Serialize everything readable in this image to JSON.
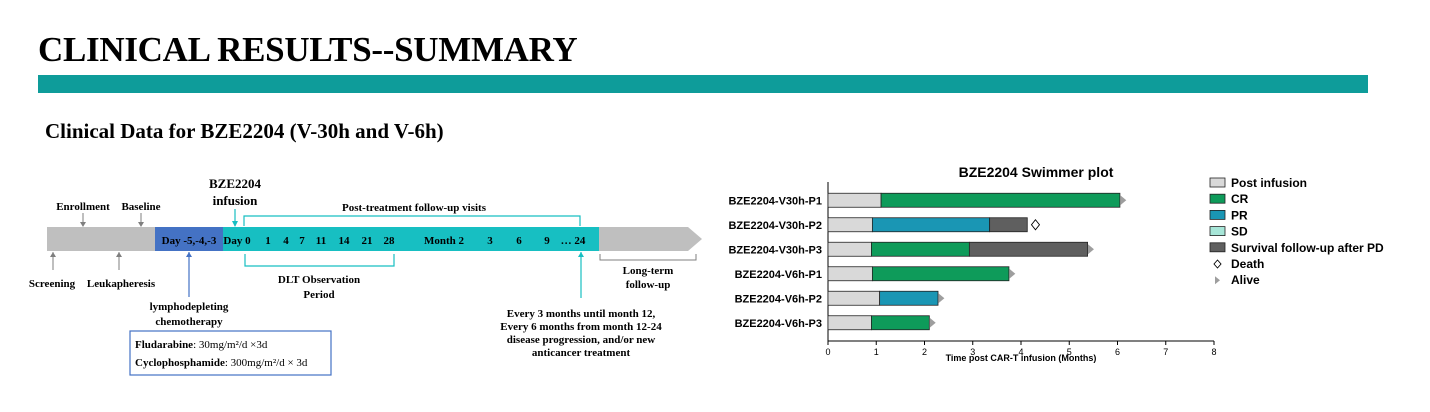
{
  "slide": {
    "title": "CLINICAL RESULTS--SUMMARY",
    "subtitle": "Clinical Data for BZE2204 (V-30h and V-6h)",
    "accent_color": "#0e9c9a"
  },
  "timeline": {
    "screening": "Screening",
    "enrollment": "Enrollment",
    "leukapheresis": "Leukapheresis",
    "baseline": "Baseline",
    "lympho_days": "Day -5,-4,-3",
    "infusion_line1": "BZE2204",
    "infusion_line2": "infusion",
    "day_label": "Day 0",
    "days": [
      "1",
      "4",
      "7",
      "11",
      "14",
      "21",
      "28"
    ],
    "month_label": "Month 2",
    "months": [
      "3",
      "6",
      "9",
      "… 24"
    ],
    "followup_visits": "Post-treatment follow-up visits",
    "dlt_line1": "DLT Observation",
    "dlt_line2": "Period",
    "longterm_line1": "Long-term",
    "longterm_line2": "follow-up",
    "lympho_line1": "lymphodepleting",
    "lympho_line2": "chemotherapy",
    "regimen_1_name": "Fludarabine",
    "regimen_1_dose": ":  30mg/m²/d ×3d",
    "regimen_2_name": "Cyclophosphamide",
    "regimen_2_dose": ":  300mg/m²/d × 3d",
    "note_lines": [
      "Every 3 months until month 12,",
      "Every 6 months from month 12-24",
      "disease progression, and/or new",
      "anticancer treatment"
    ]
  },
  "chart_data": {
    "type": "bar",
    "title": "BZE2204 Swimmer plot",
    "xlabel": "Time post CAR-T infusion (Months)",
    "xlim": [
      0,
      8
    ],
    "xticks": [
      0,
      1,
      2,
      3,
      4,
      5,
      6,
      7,
      8
    ],
    "patients": [
      {
        "id": "BZE2204-V30h-P1",
        "segments": [
          {
            "status": "Post infusion",
            "start": 0,
            "end": 1.1
          },
          {
            "status": "CR",
            "start": 1.1,
            "end": 6.05
          }
        ],
        "end_marker": "Alive",
        "marker_at": 6.12
      },
      {
        "id": "BZE2204-V30h-P2",
        "segments": [
          {
            "status": "Post infusion",
            "start": 0,
            "end": 0.92
          },
          {
            "status": "PR",
            "start": 0.92,
            "end": 3.35
          },
          {
            "status": "Survival follow-up after PD",
            "start": 3.35,
            "end": 4.13
          }
        ],
        "end_marker": "Death",
        "marker_at": 4.3
      },
      {
        "id": "BZE2204-V30h-P3",
        "segments": [
          {
            "status": "Post infusion",
            "start": 0,
            "end": 0.9
          },
          {
            "status": "CR",
            "start": 0.9,
            "end": 2.93
          },
          {
            "status": "Survival follow-up after PD",
            "start": 2.93,
            "end": 5.38
          }
        ],
        "end_marker": "Alive",
        "marker_at": 5.45
      },
      {
        "id": "BZE2204-V6h-P1",
        "segments": [
          {
            "status": "Post infusion",
            "start": 0,
            "end": 0.92
          },
          {
            "status": "CR",
            "start": 0.92,
            "end": 3.75
          }
        ],
        "end_marker": "Alive",
        "marker_at": 3.82
      },
      {
        "id": "BZE2204-V6h-P2",
        "segments": [
          {
            "status": "Post infusion",
            "start": 0,
            "end": 1.07
          },
          {
            "status": "PR",
            "start": 1.07,
            "end": 2.28
          }
        ],
        "end_marker": "Alive",
        "marker_at": 2.35
      },
      {
        "id": "BZE2204-V6h-P3",
        "segments": [
          {
            "status": "Post infusion",
            "start": 0,
            "end": 0.9
          },
          {
            "status": "CR",
            "start": 0.9,
            "end": 2.1
          }
        ],
        "end_marker": "Alive",
        "marker_at": 2.17
      }
    ],
    "legend": [
      {
        "label": "Post infusion",
        "color": "#d9d9d9",
        "kind": "box"
      },
      {
        "label": "CR",
        "color": "#0e9b5a",
        "kind": "box"
      },
      {
        "label": "PR",
        "color": "#1a96b4",
        "kind": "box"
      },
      {
        "label": "SD",
        "color": "#a7e6d8",
        "kind": "box"
      },
      {
        "label": "Survival follow-up after PD",
        "color": "#5f5f5f",
        "kind": "box"
      },
      {
        "label": "Death",
        "color": "#ffffff",
        "kind": "diamond"
      },
      {
        "label": "Alive",
        "color": "#9e9e9e",
        "kind": "triangle"
      }
    ],
    "legend_position": "right"
  }
}
